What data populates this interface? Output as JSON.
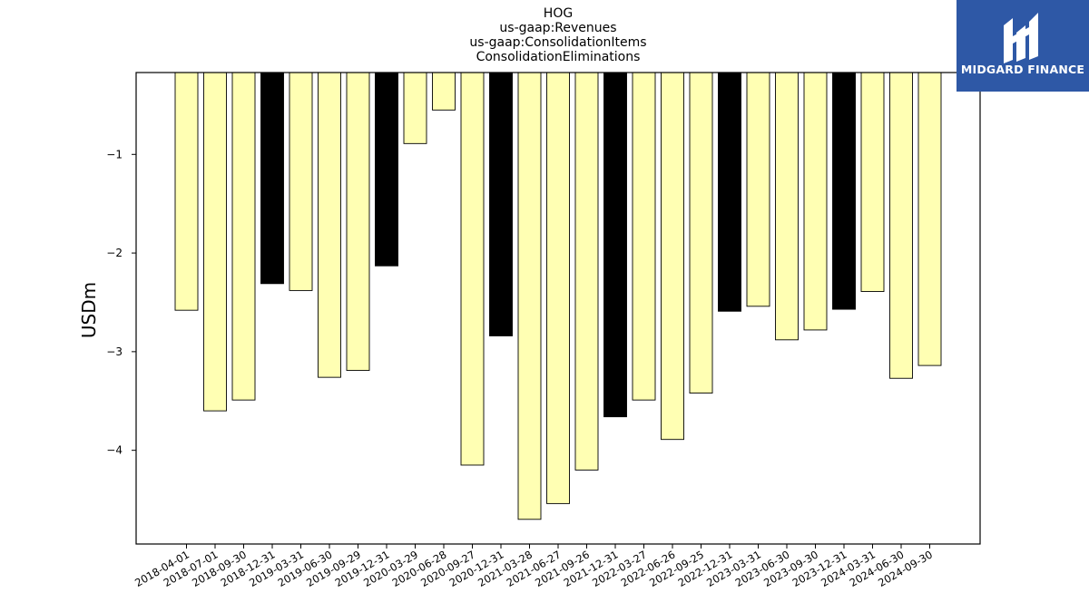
{
  "brand": {
    "name": "MIDGARD FINANCE",
    "bg_color": "#2e58a6"
  },
  "chart_data": {
    "type": "bar",
    "title_lines": [
      "HOG",
      "us-gaap:Revenues",
      "us-gaap:ConsolidationItems",
      "ConsolidationEliminations"
    ],
    "xlabel": "",
    "ylabel": "USDm",
    "ylim": [
      -4.95,
      -0.17
    ],
    "yticks": [
      -1,
      -2,
      -3,
      -4
    ],
    "ytick_labels": [
      "−1",
      "−2",
      "−3",
      "−4"
    ],
    "grid": false,
    "legend": "none",
    "colors": {
      "quarter": "#ffffb3",
      "annual": "#000000",
      "edge": "#000000"
    },
    "categories": [
      "2018-04-01",
      "2018-07-01",
      "2018-09-30",
      "2018-12-31",
      "2019-03-31",
      "2019-06-30",
      "2019-09-29",
      "2019-12-31",
      "2020-03-29",
      "2020-06-28",
      "2020-09-27",
      "2020-12-31",
      "2021-03-28",
      "2021-06-27",
      "2021-09-26",
      "2021-12-31",
      "2022-03-27",
      "2022-06-26",
      "2022-09-25",
      "2022-12-31",
      "2023-03-31",
      "2023-06-30",
      "2023-09-30",
      "2023-12-31",
      "2024-03-31",
      "2024-06-30",
      "2024-09-30"
    ],
    "values": [
      -2.58,
      -3.6,
      -3.49,
      -2.31,
      -2.38,
      -3.26,
      -3.19,
      -2.13,
      -0.89,
      -0.55,
      -4.15,
      -2.84,
      -4.7,
      -4.54,
      -4.2,
      -3.66,
      -3.49,
      -3.89,
      -3.42,
      -2.59,
      -2.54,
      -2.88,
      -2.78,
      -2.57,
      -2.39,
      -3.27,
      -3.14
    ],
    "is_year_end": [
      false,
      false,
      false,
      true,
      false,
      false,
      false,
      true,
      false,
      false,
      false,
      true,
      false,
      false,
      false,
      true,
      false,
      false,
      false,
      true,
      false,
      false,
      false,
      true,
      false,
      false,
      false
    ]
  }
}
